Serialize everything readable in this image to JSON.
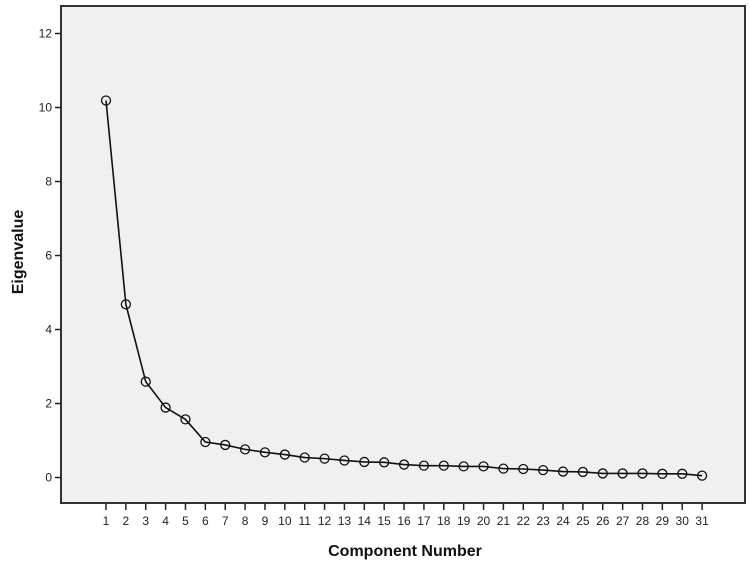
{
  "chart_data": {
    "type": "line",
    "title": "",
    "xlabel": "Component Number",
    "ylabel": "Eigenvalue",
    "x": [
      1,
      2,
      3,
      4,
      5,
      6,
      7,
      8,
      9,
      10,
      11,
      12,
      13,
      14,
      15,
      16,
      17,
      18,
      19,
      20,
      21,
      22,
      23,
      24,
      25,
      26,
      27,
      28,
      29,
      30,
      31
    ],
    "series": [
      {
        "name": "Eigenvalue",
        "values": [
          10.19,
          4.68,
          2.59,
          1.89,
          1.57,
          0.96,
          0.88,
          0.76,
          0.68,
          0.62,
          0.54,
          0.51,
          0.46,
          0.42,
          0.41,
          0.35,
          0.32,
          0.32,
          0.3,
          0.3,
          0.24,
          0.23,
          0.2,
          0.16,
          0.15,
          0.11,
          0.11,
          0.11,
          0.1,
          0.1,
          0.05
        ]
      }
    ],
    "yticks": [
      0,
      2,
      4,
      6,
      8,
      10,
      12
    ],
    "xticks": [
      1,
      2,
      3,
      4,
      5,
      6,
      7,
      8,
      9,
      10,
      11,
      12,
      13,
      14,
      15,
      16,
      17,
      18,
      19,
      20,
      21,
      22,
      23,
      24,
      25,
      26,
      27,
      28,
      29,
      30,
      31
    ],
    "ylim": [
      -0.7,
      12.7
    ],
    "xlim": [
      0,
      33.2
    ],
    "grid": false,
    "legend": "none",
    "marker": "open-circle",
    "colors": {
      "plot_background": "#f0f0f0",
      "page_background": "#ffffff",
      "line": "#111111",
      "axis": "#222222"
    }
  }
}
